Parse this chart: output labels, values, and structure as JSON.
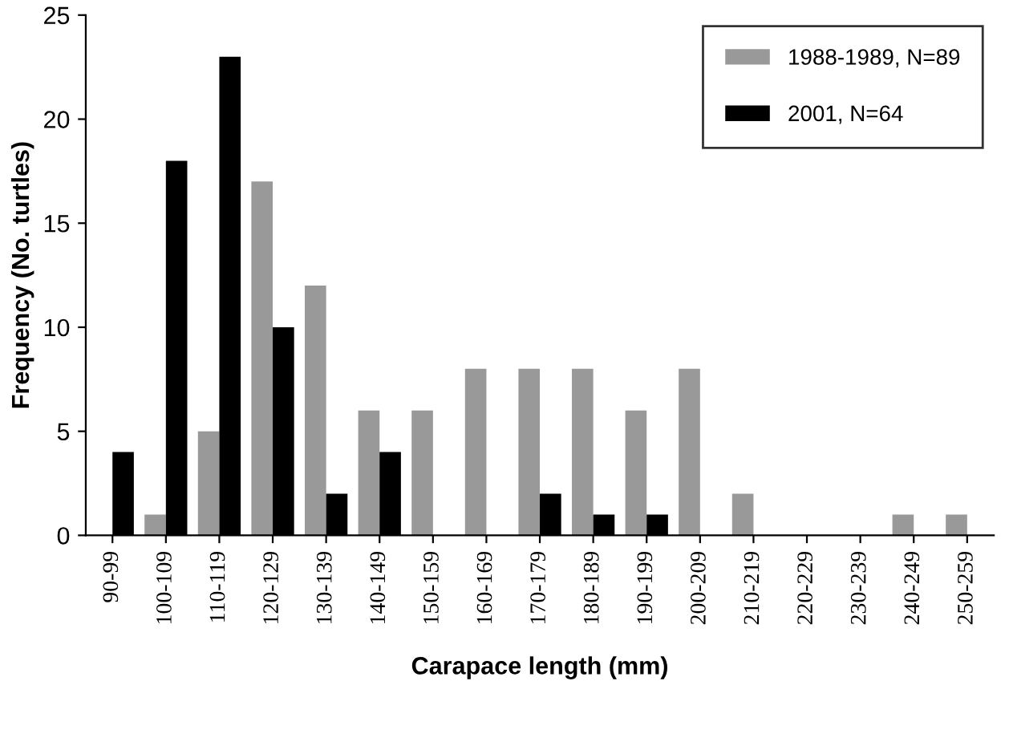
{
  "chart_data": {
    "type": "bar",
    "xlabel": "Carapace length (mm)",
    "ylabel": "Frequency (No. turtles)",
    "categories": [
      "90-99",
      "100-109",
      "110-119",
      "120-129",
      "130-139",
      "140-149",
      "150-159",
      "160-169",
      "170-179",
      "180-189",
      "190-199",
      "200-209",
      "210-219",
      "220-229",
      "230-239",
      "240-249",
      "250-259"
    ],
    "series": [
      {
        "name": "1988-1989, N=89",
        "color": "#999999",
        "values": [
          0,
          1,
          5,
          17,
          12,
          6,
          6,
          8,
          8,
          8,
          6,
          8,
          2,
          0,
          0,
          1,
          1
        ]
      },
      {
        "name": "2001, N=64",
        "color": "#000000",
        "values": [
          4,
          18,
          23,
          10,
          2,
          4,
          0,
          0,
          2,
          1,
          1,
          0,
          0,
          0,
          0,
          0,
          0
        ]
      }
    ],
    "ylim": [
      0,
      25
    ],
    "yticks": [
      0,
      5,
      10,
      15,
      20,
      25
    ],
    "grid": false,
    "legend": "top right"
  }
}
